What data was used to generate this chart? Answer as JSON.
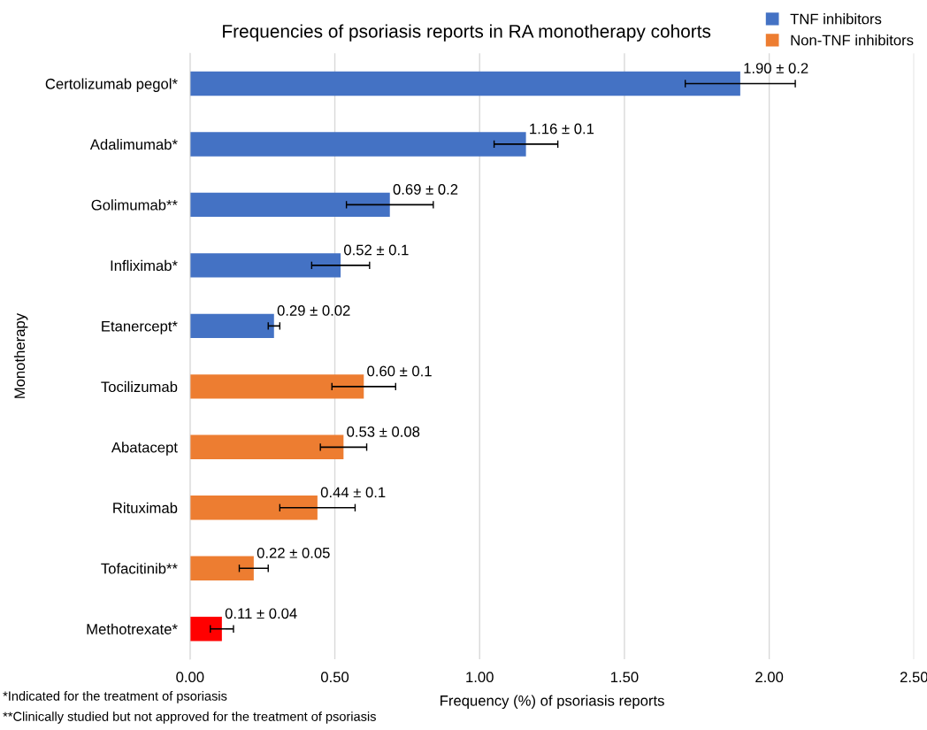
{
  "chart_data": {
    "type": "bar",
    "orientation": "horizontal",
    "stacked": true,
    "title": "Frequencies of psoriasis reports in RA monotherapy cohorts",
    "xlabel": "Frequency (%) of psoriasis reports",
    "ylabel": "Monotherapy",
    "categories": [
      "Certolizumab pegol*",
      "Adalimumab*",
      "Golimumab**",
      "Infliximab*",
      "Etanercept*",
      "Tocilizumab",
      "Abatacept",
      "Rituximab",
      "Tofacitinib**",
      "Methotrexate*"
    ],
    "series": [
      {
        "name": "TNF inhibitors",
        "color": "#4472c4",
        "values": [
          1.9,
          1.16,
          0.69,
          0.52,
          0.29,
          null,
          null,
          null,
          null,
          null
        ],
        "errors": [
          0.19,
          0.11,
          0.15,
          0.1,
          0.02,
          null,
          null,
          null,
          null,
          null
        ],
        "value_labels": [
          "1.90 ± 0.2",
          "1.16 ± 0.1",
          "0.69 ± 0.2",
          "0.52 ± 0.1",
          "0.29 ± 0.02",
          null,
          null,
          null,
          null,
          null
        ]
      },
      {
        "name": "Non-TNF inhibitors",
        "color": "#ed7d31",
        "values": [
          null,
          null,
          null,
          null,
          null,
          0.6,
          0.53,
          0.44,
          0.22,
          null
        ],
        "errors": [
          null,
          null,
          null,
          null,
          null,
          0.11,
          0.08,
          0.13,
          0.05,
          null
        ],
        "value_labels": [
          null,
          null,
          null,
          null,
          null,
          "0.60 ± 0.1",
          "0.53 ± 0.08",
          "0.44 ± 0.1",
          "0.22 ± 0.05",
          null
        ]
      },
      {
        "color": "#ff0000",
        "values": [
          null,
          null,
          null,
          null,
          null,
          null,
          null,
          null,
          null,
          0.11
        ],
        "errors": [
          null,
          null,
          null,
          null,
          null,
          null,
          null,
          null,
          null,
          0.04
        ],
        "value_labels": [
          null,
          null,
          null,
          null,
          null,
          null,
          null,
          null,
          null,
          "0.11 ± 0.04"
        ]
      }
    ],
    "xlim": [
      0,
      2.5
    ],
    "xticks": [
      {
        "value": 0,
        "label": "0.00"
      },
      {
        "value": 0.5,
        "label": "0.50"
      },
      {
        "value": 1,
        "label": "1.00"
      },
      {
        "value": 1.5,
        "label": "1.50"
      },
      {
        "value": 2,
        "label": "2.00"
      },
      {
        "value": 2.5,
        "label": "2.50"
      }
    ],
    "grid": "x",
    "legend": "top right",
    "annotations": [
      "*Indicated for the treatment of psoriasis",
      "**Clinically studied but not approved for the treatment of psoriasis"
    ]
  }
}
